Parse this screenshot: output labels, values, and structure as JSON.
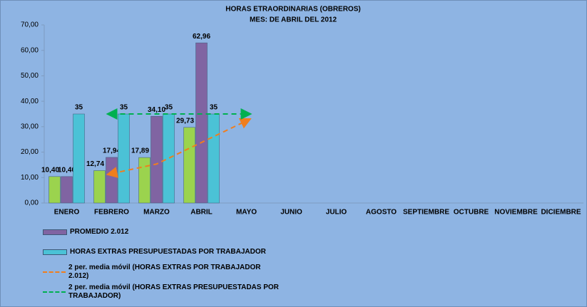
{
  "chart_data": {
    "type": "bar",
    "title": [
      "HORAS ETRAORDINARIAS (OBREROS)",
      "MES: DE ABRIL DEL 2012"
    ],
    "categories": [
      "ENERO",
      "FEBRERO",
      "MARZO",
      "ABRIL",
      "MAYO",
      "JUNIO",
      "JULIO",
      "AGOSTO",
      "SEPTIEMBRE",
      "OCTUBRE",
      "NOVIEMBRE",
      "DICIEMBRE"
    ],
    "series": [
      {
        "color": "#9bd34e",
        "values": [
          10.4,
          12.74,
          17.89,
          29.73,
          null,
          null,
          null,
          null,
          null,
          null,
          null,
          null
        ],
        "value_labels": [
          "10,40",
          "12,74",
          "17,89",
          "29,73",
          null,
          null,
          null,
          null,
          null,
          null,
          null,
          null
        ]
      },
      {
        "name": "PROMEDIO 2.012",
        "color": "#8064a2",
        "values": [
          10.4,
          17.94,
          34.1,
          62.96,
          null,
          null,
          null,
          null,
          null,
          null,
          null,
          null
        ],
        "value_labels": [
          "10,40",
          "17,94",
          "34,10",
          "62,96",
          null,
          null,
          null,
          null,
          null,
          null,
          null,
          null
        ]
      },
      {
        "name": "HORAS EXTRAS PRESUPUESTADAS POR TRABAJADOR",
        "color": "#4bc2d6",
        "values": [
          35,
          35,
          35,
          35,
          null,
          null,
          null,
          null,
          null,
          null,
          null,
          null
        ]
      },
      {
        "name": "2 per. media móvil (HORAS EXTRAS POR TRABAJADOR 2.012)",
        "type": "line",
        "color": "#f07e1e",
        "values": [
          null,
          11.57,
          15.32,
          23.81,
          32.3,
          null,
          null,
          null,
          null,
          null,
          null,
          null
        ]
      },
      {
        "name": "2 per. media móvil (HORAS EXTRAS PRESUPUESTADAS POR TRABAJADOR)",
        "type": "line",
        "color": "#00b050",
        "values": [
          null,
          35,
          35,
          35,
          35,
          null,
          null,
          null,
          null,
          null,
          null,
          null
        ]
      }
    ],
    "ylim": [
      0,
      70
    ],
    "yticks": [
      {
        "value": 0,
        "label": "0,00"
      },
      {
        "value": 10,
        "label": "10,00"
      },
      {
        "value": 20,
        "label": "20,00"
      },
      {
        "value": 30,
        "label": "30,00"
      },
      {
        "value": 40,
        "label": "40,00"
      },
      {
        "value": 50,
        "label": "50,00"
      },
      {
        "value": 60,
        "label": "60,00"
      },
      {
        "value": 70,
        "label": "70,00"
      }
    ],
    "grid": false
  }
}
